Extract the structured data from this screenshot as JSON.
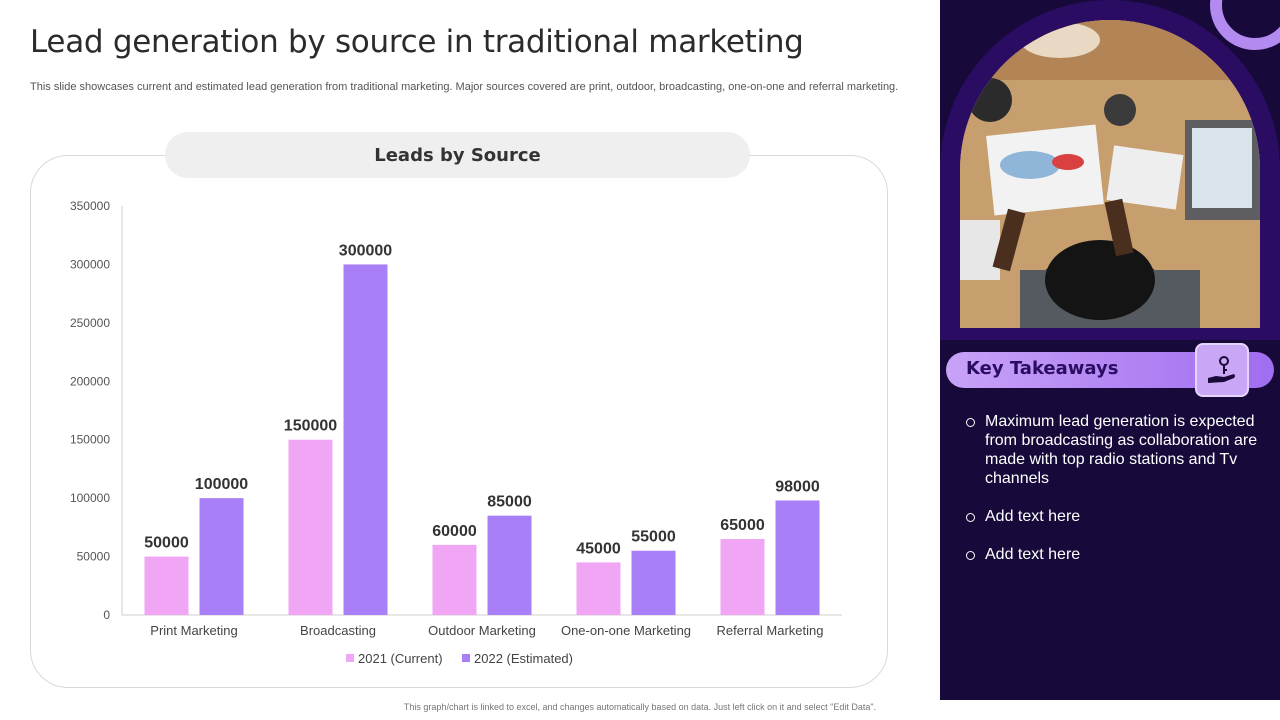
{
  "title": "Lead generation by source in traditional marketing",
  "subtitle": "This slide showcases current and estimated lead generation from traditional marketing. Major sources covered are print, outdoor, broadcasting, one-on-one and referral marketing.",
  "chart_header": "Leads by Source",
  "footer": "This graph/chart is linked to excel, and changes automatically based on data. Just left click on it and select \"Edit Data\".",
  "key_takeaways": {
    "label": "Key Takeaways",
    "icon": "hand-key-icon",
    "items": [
      "Maximum lead generation is expected from broadcasting as collaboration are made with top radio stations and Tv channels",
      "Add text here",
      "Add text here"
    ]
  },
  "colors": {
    "series_2021": "#f0a6f5",
    "series_2022": "#a87ff7",
    "panel_bg": "#170a3a",
    "accent": "#a06df0"
  },
  "chart_data": {
    "type": "bar",
    "title": "Leads by Source",
    "categories": [
      "Print Marketing",
      "Broadcasting",
      "Outdoor Marketing",
      "One-on-one Marketing",
      "Referral Marketing"
    ],
    "series": [
      {
        "name": "2021 (Current)",
        "values": [
          50000,
          150000,
          60000,
          45000,
          65000
        ]
      },
      {
        "name": "2022 (Estimated)",
        "values": [
          100000,
          300000,
          85000,
          55000,
          98000
        ]
      }
    ],
    "ylim": [
      0,
      350000
    ],
    "yticks": [
      0,
      50000,
      100000,
      150000,
      200000,
      250000,
      300000,
      350000
    ],
    "legend": "bottom",
    "grid": false,
    "data_labels": true
  }
}
